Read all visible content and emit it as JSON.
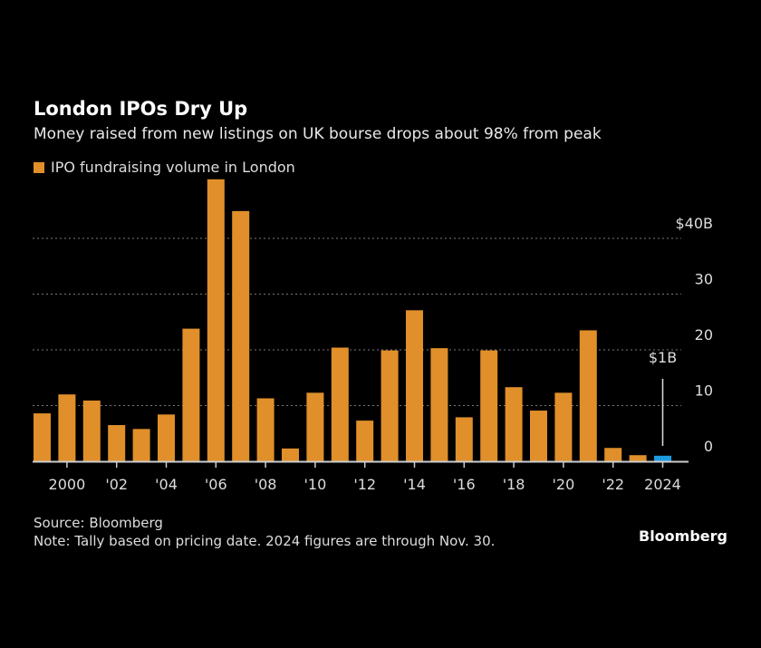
{
  "title": "London IPOs Dry Up",
  "subtitle": "Money raised from new listings on UK bourse drops about 98% from peak",
  "source": "Source: Bloomberg",
  "note": "Note: Tally based on pricing date. 2024 figures are through Nov. 30.",
  "brand": "Bloomberg",
  "chart_data": {
    "type": "bar",
    "legend": [
      {
        "name": "IPO fundraising volume in London",
        "color": "#e08f2a"
      }
    ],
    "categories": [
      1999,
      2000,
      2001,
      2002,
      2003,
      2004,
      2005,
      2006,
      2007,
      2008,
      2009,
      2010,
      2011,
      2012,
      2013,
      2014,
      2015,
      2016,
      2017,
      2018,
      2019,
      2020,
      2021,
      2022,
      2023,
      2024
    ],
    "series": [
      {
        "name": "IPO fundraising volume in London",
        "values": [
          8.6,
          12.0,
          10.9,
          6.5,
          5.8,
          8.4,
          23.8,
          50.6,
          44.9,
          11.3,
          2.3,
          12.3,
          20.4,
          7.3,
          19.9,
          27.1,
          20.3,
          7.9,
          19.9,
          13.3,
          9.1,
          12.3,
          23.5,
          2.4,
          1.1,
          1.0
        ]
      }
    ],
    "highlight": {
      "category": 2024,
      "color": "#1e9be0",
      "annotation": "$1B"
    },
    "bar_color": "#e08f2a",
    "x_tick_labels": [
      {
        "year": 2000,
        "label": "2000"
      },
      {
        "year": 2002,
        "label": "'02"
      },
      {
        "year": 2004,
        "label": "'04"
      },
      {
        "year": 2006,
        "label": "'06"
      },
      {
        "year": 2008,
        "label": "'08"
      },
      {
        "year": 2010,
        "label": "'10"
      },
      {
        "year": 2012,
        "label": "'12"
      },
      {
        "year": 2014,
        "label": "'14"
      },
      {
        "year": 2016,
        "label": "'16"
      },
      {
        "year": 2018,
        "label": "'18"
      },
      {
        "year": 2020,
        "label": "'20"
      },
      {
        "year": 2022,
        "label": "'22"
      },
      {
        "year": 2024,
        "label": "2024"
      }
    ],
    "y_ticks": [
      {
        "value": 0,
        "label": "0"
      },
      {
        "value": 10,
        "label": "10"
      },
      {
        "value": 20,
        "label": "20"
      },
      {
        "value": 30,
        "label": "30"
      },
      {
        "value": 40,
        "label": "$40B"
      }
    ],
    "ylim": [
      0,
      50.6
    ],
    "grid": true,
    "y_axis_position": "right",
    "legend_position": "top-left"
  }
}
